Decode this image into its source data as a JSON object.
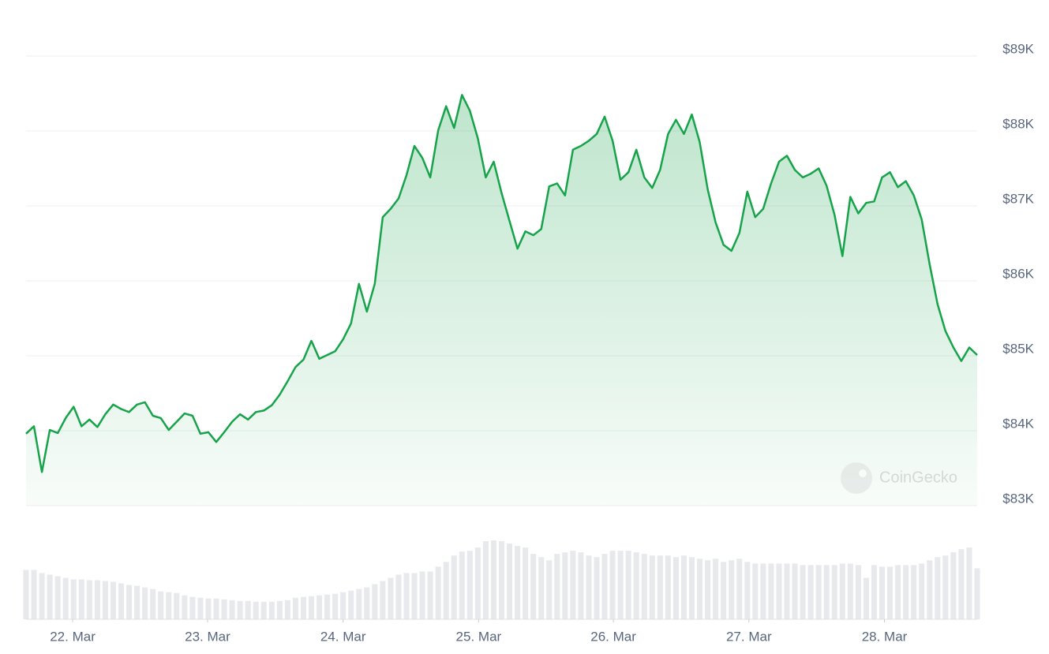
{
  "chart_data": {
    "type": "line",
    "watermark": "CoinGecko",
    "color": "#17a34a",
    "volume_color": "#e8e9ec",
    "grid": true,
    "xlim": [
      0,
      120
    ],
    "xticks": [
      {
        "value": 5.88,
        "label": "22. Mar"
      },
      {
        "value": 22.9,
        "label": "23. Mar"
      },
      {
        "value": 40.0,
        "label": "24. Mar"
      },
      {
        "value": 57.1,
        "label": "25. Mar"
      },
      {
        "value": 74.1,
        "label": "26. Mar"
      },
      {
        "value": 91.2,
        "label": "27. Mar"
      },
      {
        "value": 108.3,
        "label": "28. Mar"
      }
    ],
    "ylim": [
      83000,
      89000
    ],
    "yticks": [
      {
        "value": 83000,
        "label": "$83K"
      },
      {
        "value": 84000,
        "label": "$84K"
      },
      {
        "value": 85000,
        "label": "$85K"
      },
      {
        "value": 86000,
        "label": "$86K"
      },
      {
        "value": 87000,
        "label": "$87K"
      },
      {
        "value": 88000,
        "label": "$88K"
      },
      {
        "value": 89000,
        "label": "$89K"
      }
    ],
    "values": [
      83960,
      84060,
      83450,
      84010,
      83970,
      84170,
      84320,
      84060,
      84150,
      84050,
      84220,
      84350,
      84290,
      84250,
      84350,
      84380,
      84200,
      84170,
      84010,
      84120,
      84230,
      84200,
      83960,
      83980,
      83850,
      83980,
      84120,
      84220,
      84150,
      84250,
      84270,
      84340,
      84480,
      84660,
      84850,
      84950,
      85200,
      84960,
      85010,
      85060,
      85220,
      85430,
      85960,
      85590,
      85960,
      86850,
      86960,
      87100,
      87410,
      87800,
      87640,
      87380,
      88010,
      88330,
      88040,
      88480,
      88270,
      87900,
      87380,
      87590,
      87170,
      86800,
      86430,
      86660,
      86610,
      86690,
      87260,
      87300,
      87140,
      87750,
      87800,
      87870,
      87960,
      88190,
      87870,
      87350,
      87450,
      87750,
      87380,
      87240,
      87480,
      87960,
      88150,
      87960,
      88220,
      87850,
      87220,
      86780,
      86480,
      86400,
      86640,
      87190,
      86850,
      86960,
      87300,
      87590,
      87670,
      87480,
      87380,
      87430,
      87500,
      87270,
      86880,
      86330,
      87120,
      86900,
      87040,
      87060,
      87380,
      87450,
      87250,
      87330,
      87140,
      86820,
      86220,
      85690,
      85330,
      85110,
      84930,
      85110,
      85010
    ],
    "volume": [
      62,
      62,
      58,
      56,
      54,
      52,
      50,
      50,
      49,
      49,
      48,
      47,
      45,
      43,
      42,
      40,
      38,
      35,
      34,
      33,
      30,
      28,
      27,
      26,
      26,
      25,
      24,
      23,
      23,
      22,
      22,
      22,
      23,
      24,
      27,
      28,
      29,
      30,
      31,
      32,
      34,
      36,
      38,
      40,
      44,
      48,
      52,
      56,
      58,
      58,
      60,
      60,
      66,
      72,
      80,
      85,
      86,
      90,
      98,
      99,
      98,
      95,
      92,
      90,
      82,
      78,
      74,
      82,
      84,
      86,
      84,
      80,
      78,
      82,
      86,
      86,
      86,
      84,
      82,
      80,
      80,
      80,
      78,
      80,
      78,
      76,
      74,
      76,
      72,
      74,
      76,
      72,
      70,
      70,
      70,
      70,
      70,
      70,
      68,
      68,
      68,
      68,
      68,
      70,
      70,
      68,
      52,
      68,
      66,
      66,
      68,
      68,
      68,
      70,
      74,
      78,
      80,
      84,
      88,
      90,
      64
    ]
  }
}
